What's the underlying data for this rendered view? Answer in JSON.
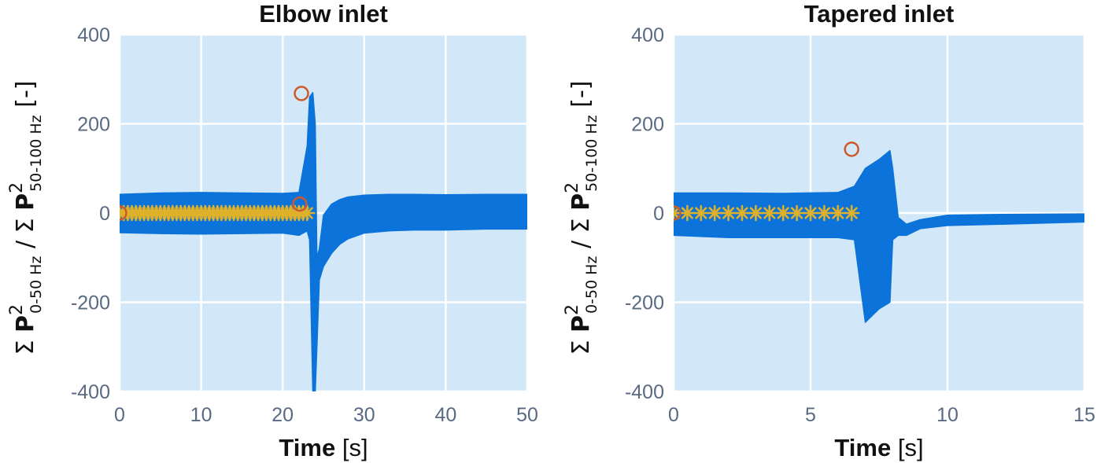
{
  "colors": {
    "background": "#d2e7f8",
    "grid": "#ffffff",
    "signal": "#0b73d9",
    "circle_marker": "#cc5a2a",
    "star_marker": "#dfb12a",
    "tick_text": "#5a6a82"
  },
  "ylabel": {
    "sum_symbol": "Σ",
    "p_symbol": "P",
    "superscript": "2",
    "num_subscript": "0-50 Hz",
    "divider": "/",
    "den_subscript": "50-100 Hz",
    "unit": "[-]"
  },
  "chart_data": [
    {
      "type": "line",
      "title": "Elbow inlet",
      "xlabel_bold": "Time",
      "xlabel_unit": "[s]",
      "xlim": [
        0,
        50
      ],
      "ylim": [
        -400,
        400
      ],
      "xticks": [
        0,
        10,
        20,
        30,
        40,
        50
      ],
      "xtick_labels": [
        "0",
        "10",
        "20",
        "30",
        "40",
        "50"
      ],
      "yticks": [
        -400,
        -200,
        0,
        200,
        400
      ],
      "ytick_labels": [
        "-400",
        "-200",
        "0",
        "200",
        "400"
      ],
      "grid": true,
      "series": [
        {
          "kind": "band",
          "x": [
            0,
            5,
            10,
            15,
            20,
            22,
            23,
            23.3,
            23.7,
            24,
            24.2,
            24.5,
            25,
            26,
            27,
            28,
            30,
            33,
            36,
            40,
            45,
            50
          ],
          "upper": [
            42,
            45,
            46,
            45,
            44,
            46,
            150,
            260,
            270,
            200,
            -100,
            -80,
            -5,
            20,
            30,
            36,
            40,
            42,
            42,
            41,
            42,
            42
          ],
          "lower": [
            -44,
            -46,
            -47,
            -46,
            -45,
            -50,
            -40,
            -60,
            -400,
            -400,
            -300,
            -150,
            -120,
            -90,
            -70,
            -58,
            -45,
            -40,
            -38,
            -38,
            -36,
            -36
          ]
        },
        {
          "kind": "markers",
          "marker": "star",
          "x": [
            0,
            0.5,
            1,
            1.5,
            2,
            2.5,
            3,
            3.5,
            4,
            4.5,
            5,
            5.5,
            6,
            6.5,
            7,
            7.5,
            8,
            8.5,
            9,
            9.5,
            10,
            10.5,
            11,
            11.5,
            12,
            12.5,
            13,
            13.5,
            14,
            14.5,
            15,
            15.5,
            16,
            16.5,
            17,
            17.5,
            18,
            18.5,
            19,
            19.5,
            20,
            20.5,
            21,
            21.5,
            22,
            22.5,
            23
          ],
          "y": [
            0,
            0,
            0,
            0,
            0,
            0,
            0,
            0,
            0,
            0,
            0,
            0,
            0,
            0,
            0,
            0,
            0,
            0,
            0,
            0,
            0,
            0,
            0,
            0,
            0,
            0,
            0,
            0,
            0,
            0,
            0,
            0,
            0,
            0,
            0,
            0,
            0,
            0,
            0,
            0,
            0,
            0,
            0,
            0,
            0,
            0,
            0
          ]
        },
        {
          "kind": "markers",
          "marker": "circle",
          "x": [
            0,
            22.1,
            22.3
          ],
          "y": [
            0,
            20,
            268
          ]
        }
      ]
    },
    {
      "type": "line",
      "title": "Tapered inlet",
      "xlabel_bold": "Time",
      "xlabel_unit": "[s]",
      "xlim": [
        0,
        15
      ],
      "ylim": [
        -400,
        400
      ],
      "xticks": [
        0,
        5,
        10,
        15
      ],
      "xtick_labels": [
        "0",
        "5",
        "10",
        "15"
      ],
      "yticks": [
        -400,
        -200,
        0,
        200,
        400
      ],
      "ytick_labels": [
        "-400",
        "-200",
        "0",
        "200",
        "400"
      ],
      "grid": true,
      "series": [
        {
          "kind": "band",
          "x": [
            0,
            2,
            4,
            6,
            6.6,
            7,
            7.5,
            7.9,
            8.0,
            8.2,
            8.5,
            9,
            10,
            12,
            15
          ],
          "upper": [
            45,
            45,
            44,
            46,
            60,
            100,
            120,
            140,
            100,
            -10,
            -25,
            -15,
            -5,
            -3,
            -2
          ],
          "lower": [
            -50,
            -55,
            -55,
            -55,
            -60,
            -245,
            -215,
            -200,
            -60,
            -50,
            -50,
            -35,
            -28,
            -25,
            -20
          ]
        },
        {
          "kind": "markers",
          "marker": "star",
          "x": [
            0,
            0.5,
            1,
            1.5,
            2,
            2.5,
            3,
            3.5,
            4,
            4.5,
            5,
            5.5,
            6,
            6.5
          ],
          "y": [
            0,
            0,
            0,
            0,
            0,
            0,
            0,
            0,
            0,
            0,
            0,
            0,
            0,
            0
          ]
        },
        {
          "kind": "markers",
          "marker": "circle",
          "x": [
            0,
            6.5
          ],
          "y": [
            0,
            143
          ]
        }
      ]
    }
  ]
}
